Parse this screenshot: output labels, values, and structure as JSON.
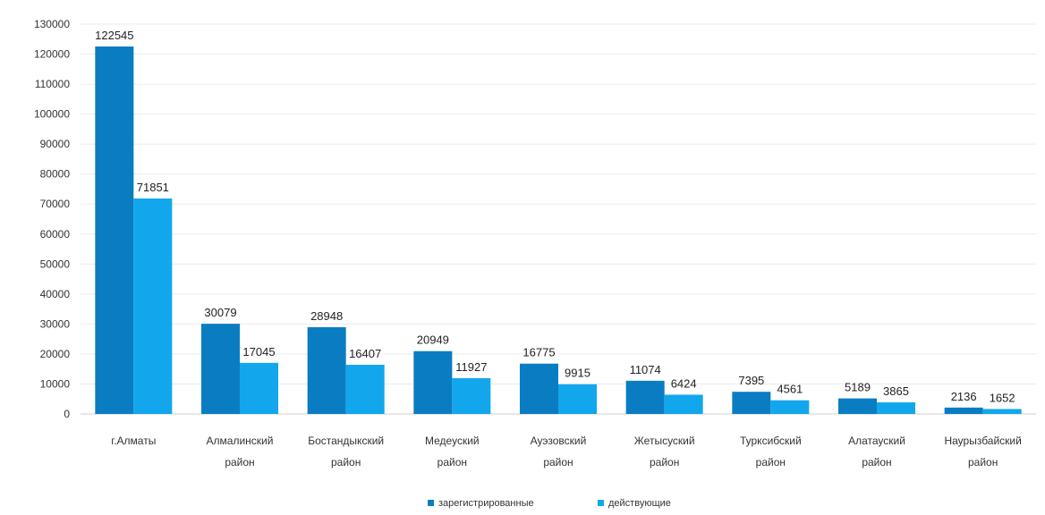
{
  "chart_data": {
    "type": "bar",
    "title": "",
    "xlabel": "",
    "ylabel": "",
    "ylim": [
      0,
      130000
    ],
    "yticks": [
      0,
      10000,
      20000,
      30000,
      40000,
      50000,
      60000,
      70000,
      80000,
      90000,
      100000,
      110000,
      120000,
      130000
    ],
    "grid": true,
    "legend_position": "bottom",
    "categories": [
      [
        "г.Алматы"
      ],
      [
        "Алмалинский",
        "район"
      ],
      [
        "Бостандыкский",
        "район"
      ],
      [
        "Медеуский",
        "район"
      ],
      [
        "Ауэзовский",
        "район"
      ],
      [
        "Жетысуский",
        "район"
      ],
      [
        "Турксибский",
        "район"
      ],
      [
        "Алатауский",
        "район"
      ],
      [
        "Наурызбайский",
        "район"
      ]
    ],
    "series": [
      {
        "name": "зарегистрированные",
        "color": "#0a7dc2",
        "values": [
          122545,
          30079,
          28948,
          20949,
          16775,
          11074,
          7395,
          5189,
          2136
        ]
      },
      {
        "name": "действующие",
        "color": "#12a7ec",
        "values": [
          71851,
          17045,
          16407,
          11927,
          9915,
          6424,
          4561,
          3865,
          1652
        ]
      }
    ]
  }
}
